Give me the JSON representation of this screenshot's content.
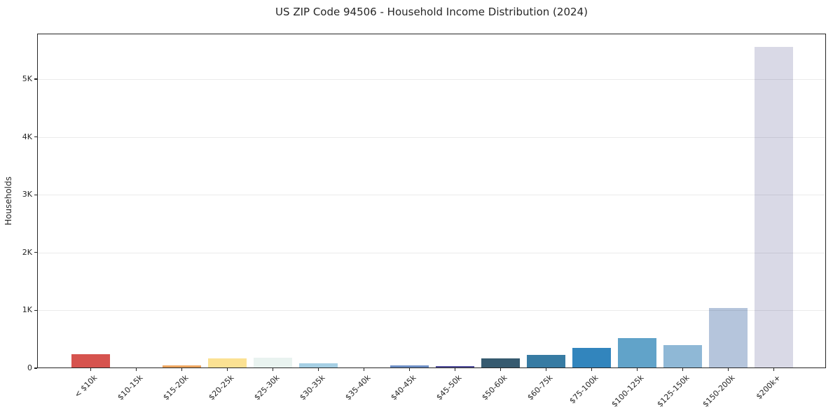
{
  "chart_data": {
    "type": "bar",
    "title": "US ZIP Code 94506 - Household Income Distribution (2024)",
    "xlabel": "",
    "ylabel": "Households",
    "categories": [
      "< $10k",
      "$10-15k",
      "$15-20k",
      "$20-25k",
      "$25-30k",
      "$30-35k",
      "$35-40k",
      "$40-45k",
      "$45-50k",
      "$50-60k",
      "$60-75k",
      "$75-100k",
      "$100-125k",
      "$125-150k",
      "$150-200k",
      "$200k+"
    ],
    "values": [
      245,
      18,
      45,
      172,
      185,
      88,
      0,
      50,
      35,
      170,
      235,
      345,
      515,
      405,
      1035,
      5550
    ],
    "bar_colors": [
      "#d6534e",
      "#9a4a3c",
      "#eca55f",
      "#fbe193",
      "#e9f3f0",
      "#a5cfe4",
      "#c7e9e4",
      "#6c8ec5",
      "#514d9b",
      "#365a6f",
      "#377ba3",
      "#3285bd",
      "#61a3c9",
      "#8fb8d6",
      "#b5c5dc",
      "#d9d9e6"
    ],
    "ytick_values": [
      0,
      1000,
      2000,
      3000,
      4000,
      5000
    ],
    "ytick_labels": [
      "0",
      "1K",
      "2K",
      "3K",
      "4K",
      "5K"
    ],
    "ylim": [
      0,
      5786
    ],
    "grid": "horizontal",
    "legend": "none",
    "xtick_rotation_deg": 45
  }
}
